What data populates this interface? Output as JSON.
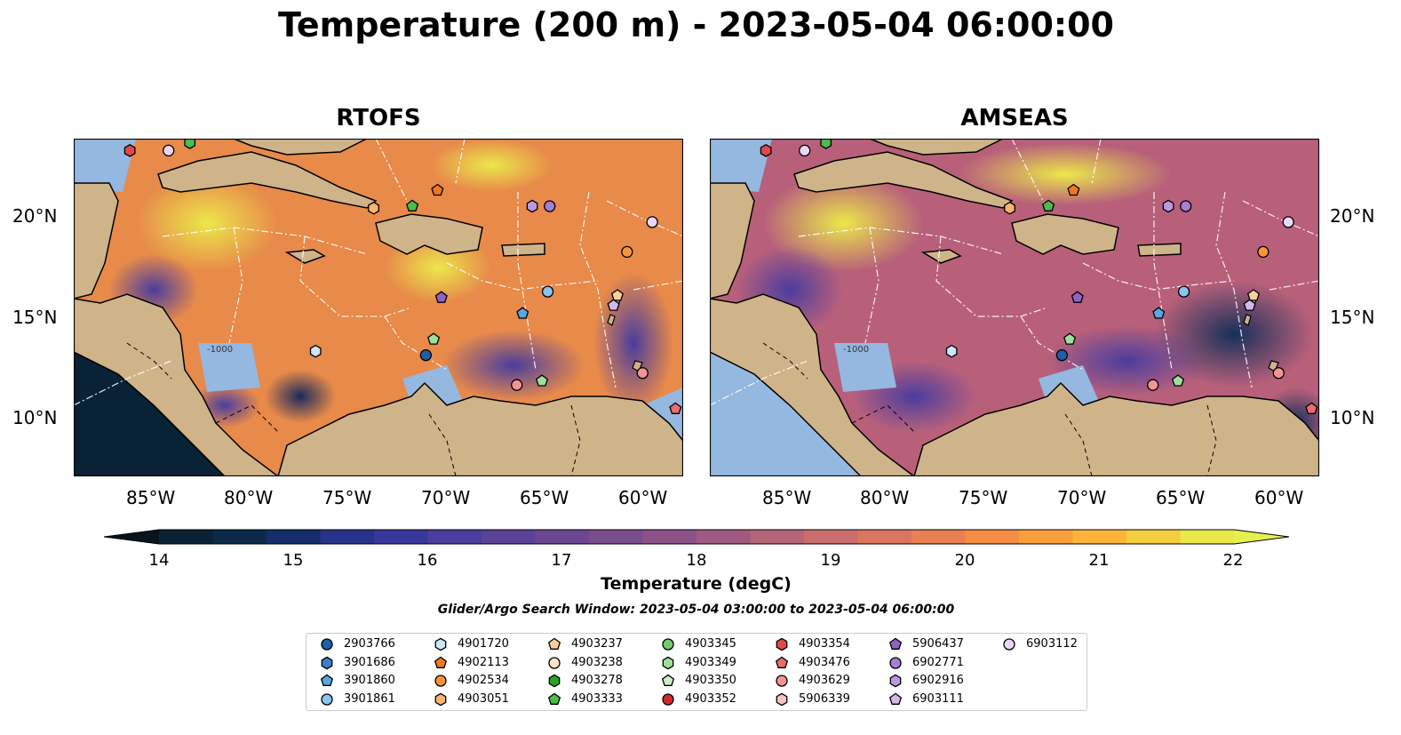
{
  "title": "Temperature (200 m) - 2023-05-04 06:00:00",
  "panels": [
    {
      "title": "RTOFS"
    },
    {
      "title": "AMSEAS"
    }
  ],
  "lat_labels": [
    "20°N",
    "15°N",
    "10°N"
  ],
  "lon_labels": [
    "85°W",
    "80°W",
    "75°W",
    "70°W",
    "65°W",
    "60°W"
  ],
  "contour_label": "-1000",
  "colorbar": {
    "label": "Temperature (degC)",
    "ticks": [
      "14",
      "15",
      "16",
      "17",
      "18",
      "19",
      "20",
      "21",
      "22"
    ],
    "colors": [
      "#0a2236",
      "#0d2a4a",
      "#152e6a",
      "#25338a",
      "#38389c",
      "#4a3d9e",
      "#5a4296",
      "#6a4790",
      "#7a4c8c",
      "#8c5287",
      "#a05a80",
      "#b66478",
      "#ca6d6c",
      "#dc7560",
      "#ea7f52",
      "#f58d44",
      "#fa9e3a",
      "#fcb53a",
      "#f5cd40",
      "#ebe84a"
    ],
    "under_color": "#05141f",
    "over_color": "#e8f050"
  },
  "search_window": "Glider/Argo Search Window: 2023-05-04 03:00:00 to 2023-05-04 06:00:00",
  "legend": [
    {
      "id": "2903766",
      "shape": "circle",
      "color": "#1f5fa8"
    },
    {
      "id": "3901686",
      "shape": "hexagon",
      "color": "#3a80c8"
    },
    {
      "id": "3901860",
      "shape": "pentagon",
      "color": "#5aa6df"
    },
    {
      "id": "3901861",
      "shape": "circle",
      "color": "#8cc4ec"
    },
    {
      "id": "4901720",
      "shape": "hexagon",
      "color": "#cde6f7"
    },
    {
      "id": "4902113",
      "shape": "pentagon",
      "color": "#f07820"
    },
    {
      "id": "4902534",
      "shape": "circle",
      "color": "#f89438"
    },
    {
      "id": "4903051",
      "shape": "hexagon",
      "color": "#fbb469"
    },
    {
      "id": "4903237",
      "shape": "pentagon",
      "color": "#fbcf9c"
    },
    {
      "id": "4903238",
      "shape": "circle",
      "color": "#fde4c8"
    },
    {
      "id": "4903278",
      "shape": "hexagon",
      "color": "#2aa02a"
    },
    {
      "id": "4903333",
      "shape": "pentagon",
      "color": "#4dbb4d"
    },
    {
      "id": "4903345",
      "shape": "circle",
      "color": "#72cc6e"
    },
    {
      "id": "4903349",
      "shape": "hexagon",
      "color": "#9ee09a"
    },
    {
      "id": "4903350",
      "shape": "pentagon",
      "color": "#c8f1c4"
    },
    {
      "id": "4903352",
      "shape": "circle",
      "color": "#d62728"
    },
    {
      "id": "4903354",
      "shape": "hexagon",
      "color": "#e04a4a"
    },
    {
      "id": "4903476",
      "shape": "pentagon",
      "color": "#ec6c6c"
    },
    {
      "id": "4903629",
      "shape": "circle",
      "color": "#f59393"
    },
    {
      "id": "5906339",
      "shape": "hexagon",
      "color": "#f9c2c2"
    },
    {
      "id": "5906437",
      "shape": "pentagon",
      "color": "#8e62c6"
    },
    {
      "id": "6902771",
      "shape": "circle",
      "color": "#a47fd2"
    },
    {
      "id": "6902916",
      "shape": "hexagon",
      "color": "#b99ae0"
    },
    {
      "id": "6903111",
      "shape": "pentagon",
      "color": "#d1b9ec"
    },
    {
      "id": "6903112",
      "shape": "circle",
      "color": "#e8d8f6"
    }
  ],
  "map_extent": {
    "lon": [
      -89.5,
      -58.0
    ],
    "lat": [
      7.0,
      24.0
    ]
  },
  "floats": [
    {
      "lon": -86.6,
      "lat": 23.4,
      "shape": "hexagon",
      "color": "#e04a4a"
    },
    {
      "lon": -84.6,
      "lat": 23.4,
      "shape": "circle",
      "color": "#e8d8f6"
    },
    {
      "lon": -83.5,
      "lat": 23.8,
      "shape": "hexagon",
      "color": "#4dbb4d"
    },
    {
      "lon": -74.0,
      "lat": 20.5,
      "shape": "hexagon",
      "color": "#fbb469"
    },
    {
      "lon": -72.0,
      "lat": 20.6,
      "shape": "pentagon",
      "color": "#4dbb4d"
    },
    {
      "lon": -70.7,
      "lat": 21.4,
      "shape": "pentagon",
      "color": "#f07820"
    },
    {
      "lon": -65.8,
      "lat": 20.6,
      "shape": "hexagon",
      "color": "#b99ae0"
    },
    {
      "lon": -64.9,
      "lat": 20.6,
      "shape": "circle",
      "color": "#a47fd2"
    },
    {
      "lon": -59.6,
      "lat": 19.8,
      "shape": "circle",
      "color": "#e8d8f6"
    },
    {
      "lon": -60.9,
      "lat": 18.3,
      "shape": "circle",
      "color": "#f89438"
    },
    {
      "lon": -65.0,
      "lat": 16.3,
      "shape": "circle",
      "color": "#8cc4ec"
    },
    {
      "lon": -61.4,
      "lat": 16.1,
      "shape": "pentagon",
      "color": "#fbcf9c"
    },
    {
      "lon": -61.6,
      "lat": 15.6,
      "shape": "pentagon",
      "color": "#d1b9ec"
    },
    {
      "lon": -70.5,
      "lat": 16.0,
      "shape": "pentagon",
      "color": "#8e62c6"
    },
    {
      "lon": -66.3,
      "lat": 15.2,
      "shape": "pentagon",
      "color": "#5aa6df"
    },
    {
      "lon": -70.9,
      "lat": 13.9,
      "shape": "pentagon",
      "color": "#9ee09a"
    },
    {
      "lon": -77.0,
      "lat": 13.3,
      "shape": "hexagon",
      "color": "#cde6f7"
    },
    {
      "lon": -71.3,
      "lat": 13.1,
      "shape": "circle",
      "color": "#1f5fa8"
    },
    {
      "lon": -60.1,
      "lat": 12.2,
      "shape": "circle",
      "color": "#f59393"
    },
    {
      "lon": -66.6,
      "lat": 11.6,
      "shape": "circle",
      "color": "#f59393"
    },
    {
      "lon": -65.3,
      "lat": 11.8,
      "shape": "pentagon",
      "color": "#9ee09a"
    },
    {
      "lon": -58.4,
      "lat": 10.4,
      "shape": "pentagon",
      "color": "#ec6c6c"
    }
  ]
}
